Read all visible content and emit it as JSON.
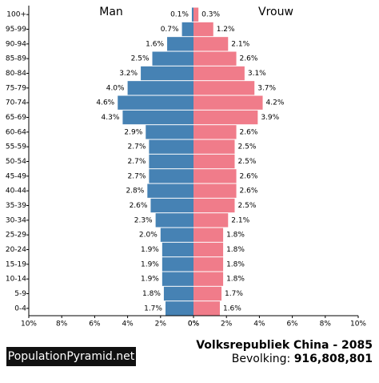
{
  "chart_data": {
    "type": "pyramid",
    "title": "Volksrepubliek China - 2085",
    "population_label": "Bevolking:",
    "population": "916,808,801",
    "brand": "PopulationPyramid.net",
    "categories": [
      "100+",
      "95-99",
      "90-94",
      "85-89",
      "80-84",
      "75-79",
      "70-74",
      "65-69",
      "60-64",
      "55-59",
      "50-54",
      "45-49",
      "40-44",
      "35-39",
      "30-34",
      "25-29",
      "20-24",
      "15-19",
      "10-14",
      "5-9",
      "0-4"
    ],
    "series": [
      {
        "name": "Man",
        "color": "#4682b4",
        "side": "left",
        "values": [
          0.1,
          0.7,
          1.6,
          2.5,
          3.2,
          4.0,
          4.6,
          4.3,
          2.9,
          2.7,
          2.7,
          2.7,
          2.8,
          2.6,
          2.3,
          2.0,
          1.9,
          1.9,
          1.9,
          1.8,
          1.7
        ],
        "value_labels": [
          "0.1%",
          "0.7%",
          "1.6%",
          "2.5%",
          "3.2%",
          "4.0%",
          "4.6%",
          "4.3%",
          "2.9%",
          "2.7%",
          "2.7%",
          "2.7%",
          "2.8%",
          "2.6%",
          "2.3%",
          "2.0%",
          "1.9%",
          "1.9%",
          "1.9%",
          "1.8%",
          "1.7%"
        ]
      },
      {
        "name": "Vrouw",
        "color": "#f07c8a",
        "side": "right",
        "values": [
          0.3,
          1.2,
          2.1,
          2.6,
          3.1,
          3.7,
          4.2,
          3.9,
          2.6,
          2.5,
          2.5,
          2.6,
          2.6,
          2.5,
          2.1,
          1.8,
          1.8,
          1.8,
          1.8,
          1.7,
          1.6
        ],
        "value_labels": [
          "0.3%",
          "1.2%",
          "2.1%",
          "2.6%",
          "3.1%",
          "3.7%",
          "4.2%",
          "3.9%",
          "2.6%",
          "2.5%",
          "2.5%",
          "2.6%",
          "2.6%",
          "2.5%",
          "2.1%",
          "1.8%",
          "1.8%",
          "1.8%",
          "1.8%",
          "1.7%",
          "1.6%"
        ]
      }
    ],
    "xlim": [
      0,
      10
    ],
    "xticks": [
      {
        "value": 0,
        "label": "0%"
      },
      {
        "value": 2,
        "label": "2%"
      },
      {
        "value": 4,
        "label": "4%"
      },
      {
        "value": 6,
        "label": "6%"
      },
      {
        "value": 8,
        "label": "8%"
      },
      {
        "value": 10,
        "label": "10%"
      }
    ]
  }
}
